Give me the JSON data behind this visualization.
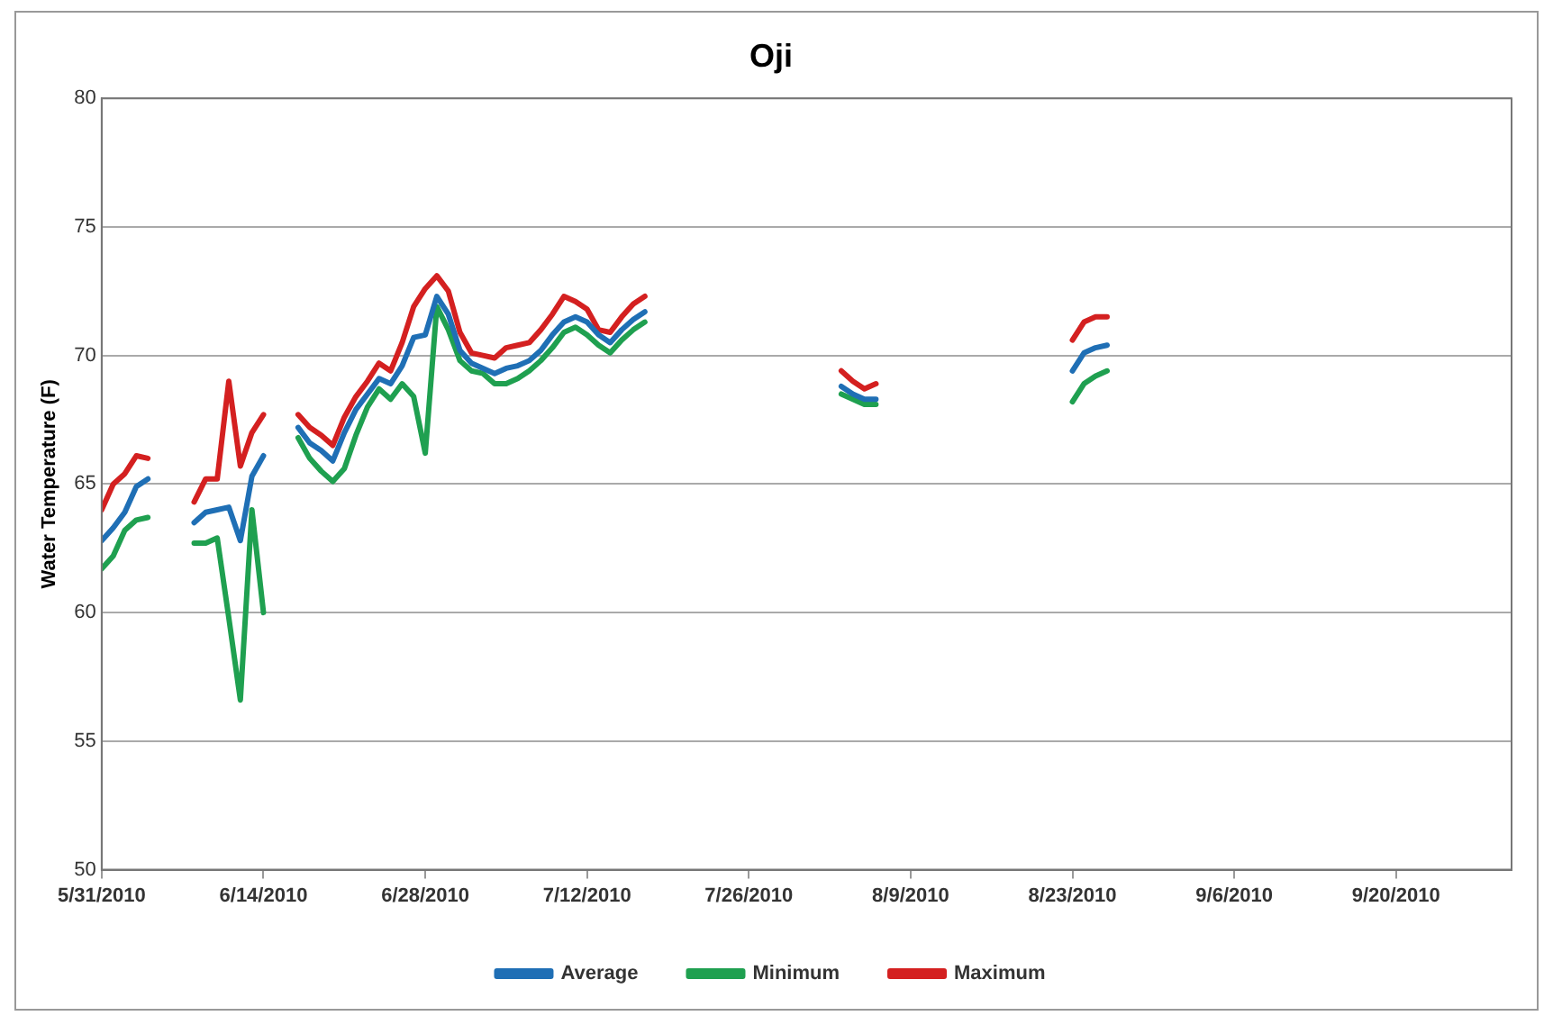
{
  "chart_data": {
    "type": "line",
    "title": "Oji",
    "ylabel": "Water Temperature (F)",
    "x": [
      "2010-05-31",
      "2010-06-01",
      "2010-06-02",
      "2010-06-03",
      "2010-06-04",
      "2010-06-06",
      "2010-06-08",
      "2010-06-09",
      "2010-06-10",
      "2010-06-11",
      "2010-06-12",
      "2010-06-13",
      "2010-06-14",
      "2010-06-15",
      "2010-06-17",
      "2010-06-18",
      "2010-06-19",
      "2010-06-20",
      "2010-06-21",
      "2010-06-22",
      "2010-06-23",
      "2010-06-24",
      "2010-06-25",
      "2010-06-26",
      "2010-06-27",
      "2010-06-28",
      "2010-06-29",
      "2010-06-30",
      "2010-07-01",
      "2010-07-02",
      "2010-07-03",
      "2010-07-04",
      "2010-07-05",
      "2010-07-06",
      "2010-07-07",
      "2010-07-08",
      "2010-07-09",
      "2010-07-10",
      "2010-07-11",
      "2010-07-12",
      "2010-07-13",
      "2010-07-14",
      "2010-07-15",
      "2010-07-16",
      "2010-07-17",
      "2010-07-25",
      "2010-08-03",
      "2010-08-04",
      "2010-08-05",
      "2010-08-06",
      "2010-08-15",
      "2010-08-23",
      "2010-08-24",
      "2010-08-25",
      "2010-08-26"
    ],
    "series": [
      {
        "name": "Average",
        "color": "#1f6fb5",
        "values": [
          62.8,
          63.3,
          63.9,
          64.9,
          65.2,
          null,
          63.5,
          63.9,
          64.0,
          64.1,
          62.8,
          65.3,
          66.1,
          null,
          67.2,
          66.6,
          66.3,
          65.9,
          67.0,
          67.9,
          68.5,
          69.1,
          68.9,
          69.6,
          70.7,
          70.8,
          72.3,
          71.6,
          70.2,
          69.7,
          69.5,
          69.3,
          69.5,
          69.6,
          69.8,
          70.2,
          70.8,
          71.3,
          71.5,
          71.3,
          70.8,
          70.5,
          71.0,
          71.4,
          71.7,
          null,
          68.8,
          68.5,
          68.3,
          68.3,
          null,
          69.4,
          70.1,
          70.3,
          70.4
        ]
      },
      {
        "name": "Minimum",
        "color": "#1fa050",
        "values": [
          61.7,
          62.2,
          63.2,
          63.6,
          63.7,
          null,
          62.7,
          62.7,
          62.9,
          59.8,
          56.6,
          64.0,
          60.0,
          null,
          66.8,
          66.0,
          65.5,
          65.1,
          65.6,
          66.9,
          68.0,
          68.7,
          68.3,
          68.9,
          68.4,
          66.2,
          71.9,
          71.0,
          69.8,
          69.4,
          69.3,
          68.9,
          68.9,
          69.1,
          69.4,
          69.8,
          70.3,
          70.9,
          71.1,
          70.8,
          70.4,
          70.1,
          70.6,
          71.0,
          71.3,
          null,
          68.5,
          68.3,
          68.1,
          68.1,
          null,
          68.2,
          68.9,
          69.2,
          69.4
        ]
      },
      {
        "name": "Maximum",
        "color": "#d42020",
        "values": [
          64.0,
          65.0,
          65.4,
          66.1,
          66.0,
          null,
          64.3,
          65.2,
          65.2,
          69.0,
          65.7,
          67.0,
          67.7,
          null,
          67.7,
          67.2,
          66.9,
          66.5,
          67.6,
          68.4,
          69.0,
          69.7,
          69.4,
          70.5,
          71.9,
          72.6,
          73.1,
          72.5,
          70.9,
          70.1,
          70.0,
          69.9,
          70.3,
          70.4,
          70.5,
          71.0,
          71.6,
          72.3,
          72.1,
          71.8,
          71.0,
          70.9,
          71.5,
          72.0,
          72.3,
          null,
          69.4,
          69.0,
          68.7,
          68.9,
          null,
          70.6,
          71.3,
          71.5,
          71.5
        ]
      }
    ],
    "xlim": [
      "2010-05-31",
      "2010-09-30"
    ],
    "xticks": [
      {
        "value": "2010-05-31",
        "label": "5/31/2010"
      },
      {
        "value": "2010-06-14",
        "label": "6/14/2010"
      },
      {
        "value": "2010-06-28",
        "label": "6/28/2010"
      },
      {
        "value": "2010-07-12",
        "label": "7/12/2010"
      },
      {
        "value": "2010-07-26",
        "label": "7/26/2010"
      },
      {
        "value": "2010-08-09",
        "label": "8/9/2010"
      },
      {
        "value": "2010-08-23",
        "label": "8/23/2010"
      },
      {
        "value": "2010-09-06",
        "label": "9/6/2010"
      },
      {
        "value": "2010-09-20",
        "label": "9/20/2010"
      }
    ],
    "ylim": [
      50,
      80
    ],
    "yticks": [
      50,
      55,
      60,
      65,
      70,
      75,
      80
    ],
    "grid": "y",
    "legend": "bottom",
    "marker": "none",
    "line_style": "solid"
  }
}
